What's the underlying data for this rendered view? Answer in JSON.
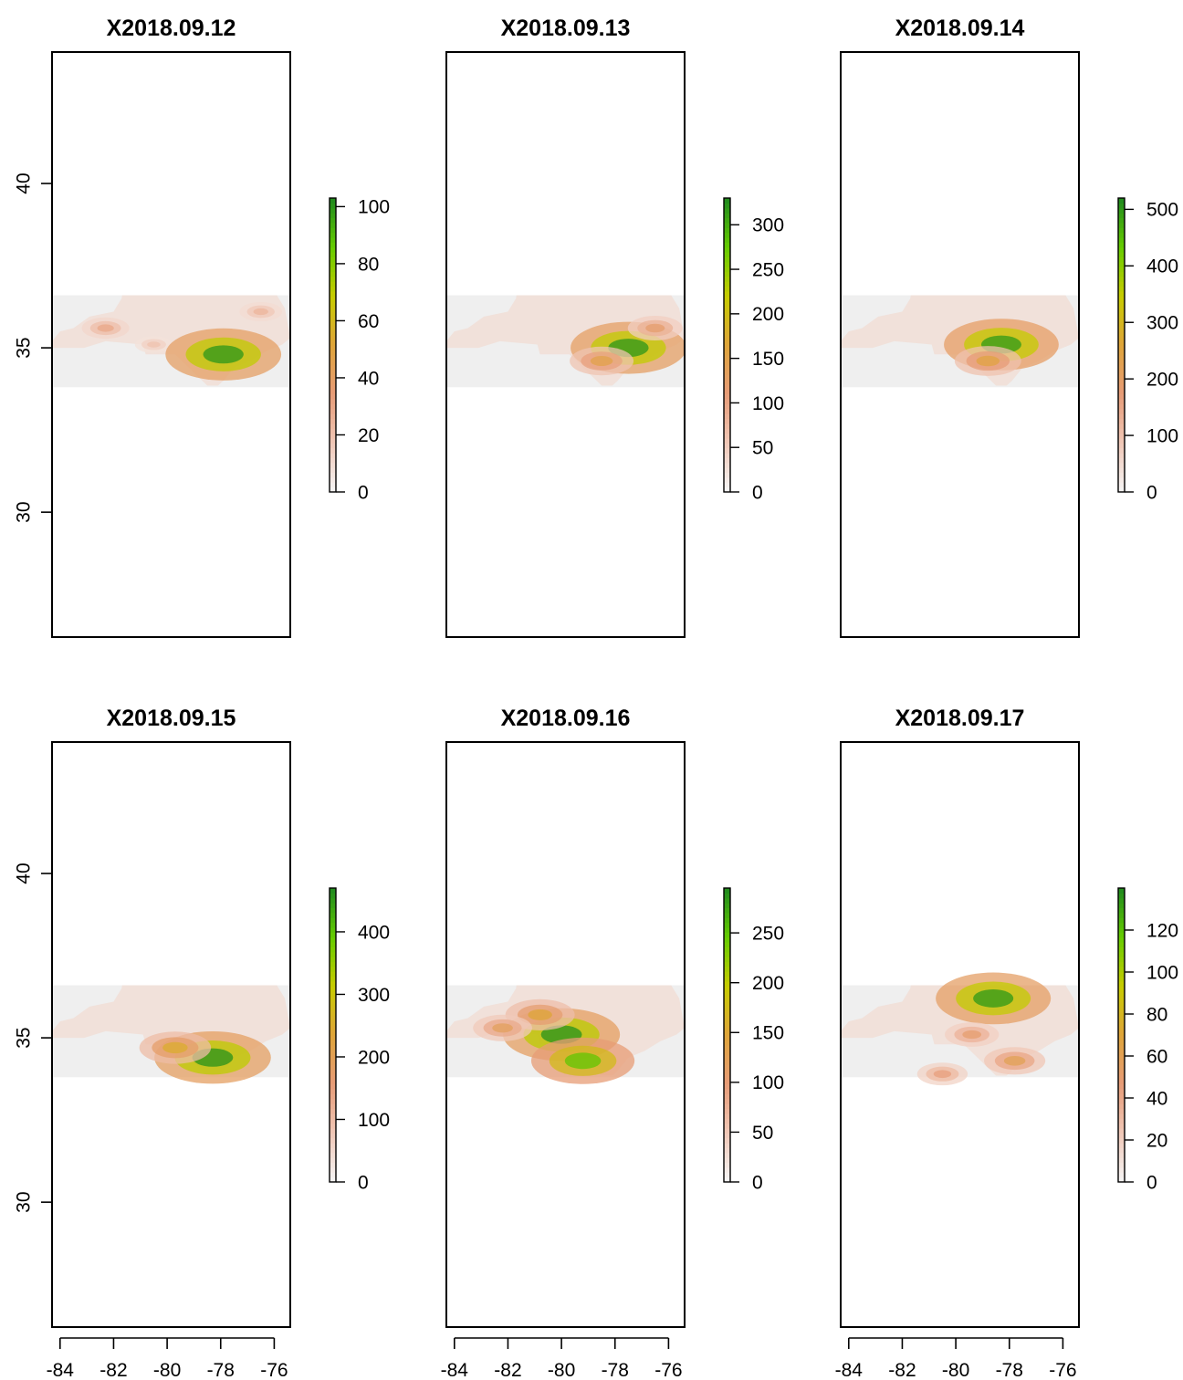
{
  "chart_data": [
    {
      "type": "heatmap",
      "title": "X2018.09.12",
      "xlim": [
        -84.3,
        -75.4
      ],
      "ylim": [
        26.2,
        44.0
      ],
      "y_ticks": [
        30,
        35,
        40
      ],
      "x_ticks": [],
      "colorbar": {
        "min": 0,
        "max": 103,
        "ticks": [
          0,
          20,
          40,
          60,
          80,
          100
        ]
      },
      "data_extent": {
        "lon": [
          -84.3,
          -75.4
        ],
        "lat": [
          33.8,
          36.6
        ]
      },
      "colorscale": [
        "#f6f6f6",
        "#f0c8b8",
        "#e79c78",
        "#dfa43a",
        "#c8cc00",
        "#66cc00",
        "#1f8a1f"
      ],
      "hotspots": [
        {
          "lon": -82.3,
          "lat": 35.6,
          "value": 30
        },
        {
          "lon": -80.5,
          "lat": 35.1,
          "value": 20
        },
        {
          "lon": -77.9,
          "lat": 34.8,
          "value": 100
        },
        {
          "lon": -76.5,
          "lat": 36.1,
          "value": 25
        }
      ]
    },
    {
      "type": "heatmap",
      "title": "X2018.09.13",
      "xlim": [
        -84.3,
        -75.4
      ],
      "ylim": [
        26.2,
        44.0
      ],
      "y_ticks": [],
      "x_ticks": [],
      "colorbar": {
        "min": 0,
        "max": 330,
        "ticks": [
          0,
          50,
          100,
          150,
          200,
          250,
          300
        ]
      },
      "data_extent": {
        "lon": [
          -84.3,
          -75.4
        ],
        "lat": [
          33.8,
          36.6
        ]
      },
      "colorscale": [
        "#f6f6f6",
        "#f0c8b8",
        "#e79c78",
        "#dfa43a",
        "#c8cc00",
        "#66cc00",
        "#1f8a1f"
      ],
      "hotspots": [
        {
          "lon": -77.5,
          "lat": 35.0,
          "value": 320
        },
        {
          "lon": -78.5,
          "lat": 34.6,
          "value": 150
        },
        {
          "lon": -76.5,
          "lat": 35.6,
          "value": 120
        }
      ]
    },
    {
      "type": "heatmap",
      "title": "X2018.09.14",
      "xlim": [
        -84.3,
        -75.4
      ],
      "ylim": [
        26.2,
        44.0
      ],
      "y_ticks": [],
      "x_ticks": [],
      "colorbar": {
        "min": 0,
        "max": 520,
        "ticks": [
          0,
          100,
          200,
          300,
          400,
          500
        ],
        "tick_labels": [
          "0",
          "100",
          "200",
          "300",
          "400",
          "500"
        ]
      },
      "data_extent": {
        "lon": [
          -84.3,
          -75.4
        ],
        "lat": [
          33.8,
          36.6
        ]
      },
      "colorscale": [
        "#f6f6f6",
        "#f0c8b8",
        "#e79c78",
        "#dfa43a",
        "#c8cc00",
        "#66cc00",
        "#1f8a1f"
      ],
      "hotspots": [
        {
          "lon": -78.3,
          "lat": 35.1,
          "value": 500
        },
        {
          "lon": -78.8,
          "lat": 34.6,
          "value": 250
        }
      ]
    },
    {
      "type": "heatmap",
      "title": "X2018.09.15",
      "xlim": [
        -84.3,
        -75.4
      ],
      "ylim": [
        26.2,
        44.0
      ],
      "y_ticks": [
        30,
        35,
        40
      ],
      "x_ticks": [
        -84,
        -82,
        -80,
        -78,
        -76
      ],
      "colorbar": {
        "min": 0,
        "max": 470,
        "ticks": [
          0,
          100,
          200,
          300,
          400
        ]
      },
      "data_extent": {
        "lon": [
          -84.3,
          -75.4
        ],
        "lat": [
          33.8,
          36.6
        ]
      },
      "colorscale": [
        "#f6f6f6",
        "#f0c8b8",
        "#e79c78",
        "#dfa43a",
        "#c8cc00",
        "#66cc00",
        "#1f8a1f"
      ],
      "hotspots": [
        {
          "lon": -78.3,
          "lat": 34.4,
          "value": 460
        },
        {
          "lon": -79.7,
          "lat": 34.7,
          "value": 250
        }
      ]
    },
    {
      "type": "heatmap",
      "title": "X2018.09.16",
      "xlim": [
        -84.3,
        -75.4
      ],
      "ylim": [
        26.2,
        44.0
      ],
      "y_ticks": [],
      "x_ticks": [
        -84,
        -82,
        -80,
        -78,
        -76
      ],
      "colorbar": {
        "min": 0,
        "max": 295,
        "ticks": [
          0,
          50,
          100,
          150,
          200,
          250
        ]
      },
      "data_extent": {
        "lon": [
          -84.3,
          -75.4
        ],
        "lat": [
          33.8,
          36.6
        ]
      },
      "colorscale": [
        "#f6f6f6",
        "#f0c8b8",
        "#e79c78",
        "#dfa43a",
        "#c8cc00",
        "#66cc00",
        "#1f8a1f"
      ],
      "hotspots": [
        {
          "lon": -80.0,
          "lat": 35.1,
          "value": 290
        },
        {
          "lon": -79.2,
          "lat": 34.3,
          "value": 250
        },
        {
          "lon": -80.8,
          "lat": 35.7,
          "value": 150
        },
        {
          "lon": -82.2,
          "lat": 35.3,
          "value": 120
        }
      ]
    },
    {
      "type": "heatmap",
      "title": "X2018.09.17",
      "xlim": [
        -84.3,
        -75.4
      ],
      "ylim": [
        26.2,
        44.0
      ],
      "y_ticks": [],
      "x_ticks": [
        -84,
        -82,
        -80,
        -78,
        -76
      ],
      "colorbar": {
        "min": 0,
        "max": 140,
        "ticks": [
          0,
          20,
          40,
          60,
          80,
          100,
          120
        ],
        "tick_labels": [
          "0",
          "20",
          "40",
          "60",
          "80",
          "100",
          "120"
        ]
      },
      "data_extent": {
        "lon": [
          -84.3,
          -75.4
        ],
        "lat": [
          33.8,
          36.6
        ]
      },
      "colorscale": [
        "#f6f6f6",
        "#f0c8b8",
        "#e79c78",
        "#dfa43a",
        "#c8cc00",
        "#66cc00",
        "#1f8a1f"
      ],
      "hotspots": [
        {
          "lon": -78.6,
          "lat": 36.2,
          "value": 135
        },
        {
          "lon": -79.4,
          "lat": 35.1,
          "value": 50
        },
        {
          "lon": -80.5,
          "lat": 33.9,
          "value": 45
        },
        {
          "lon": -77.8,
          "lat": 34.3,
          "value": 60
        }
      ]
    }
  ]
}
